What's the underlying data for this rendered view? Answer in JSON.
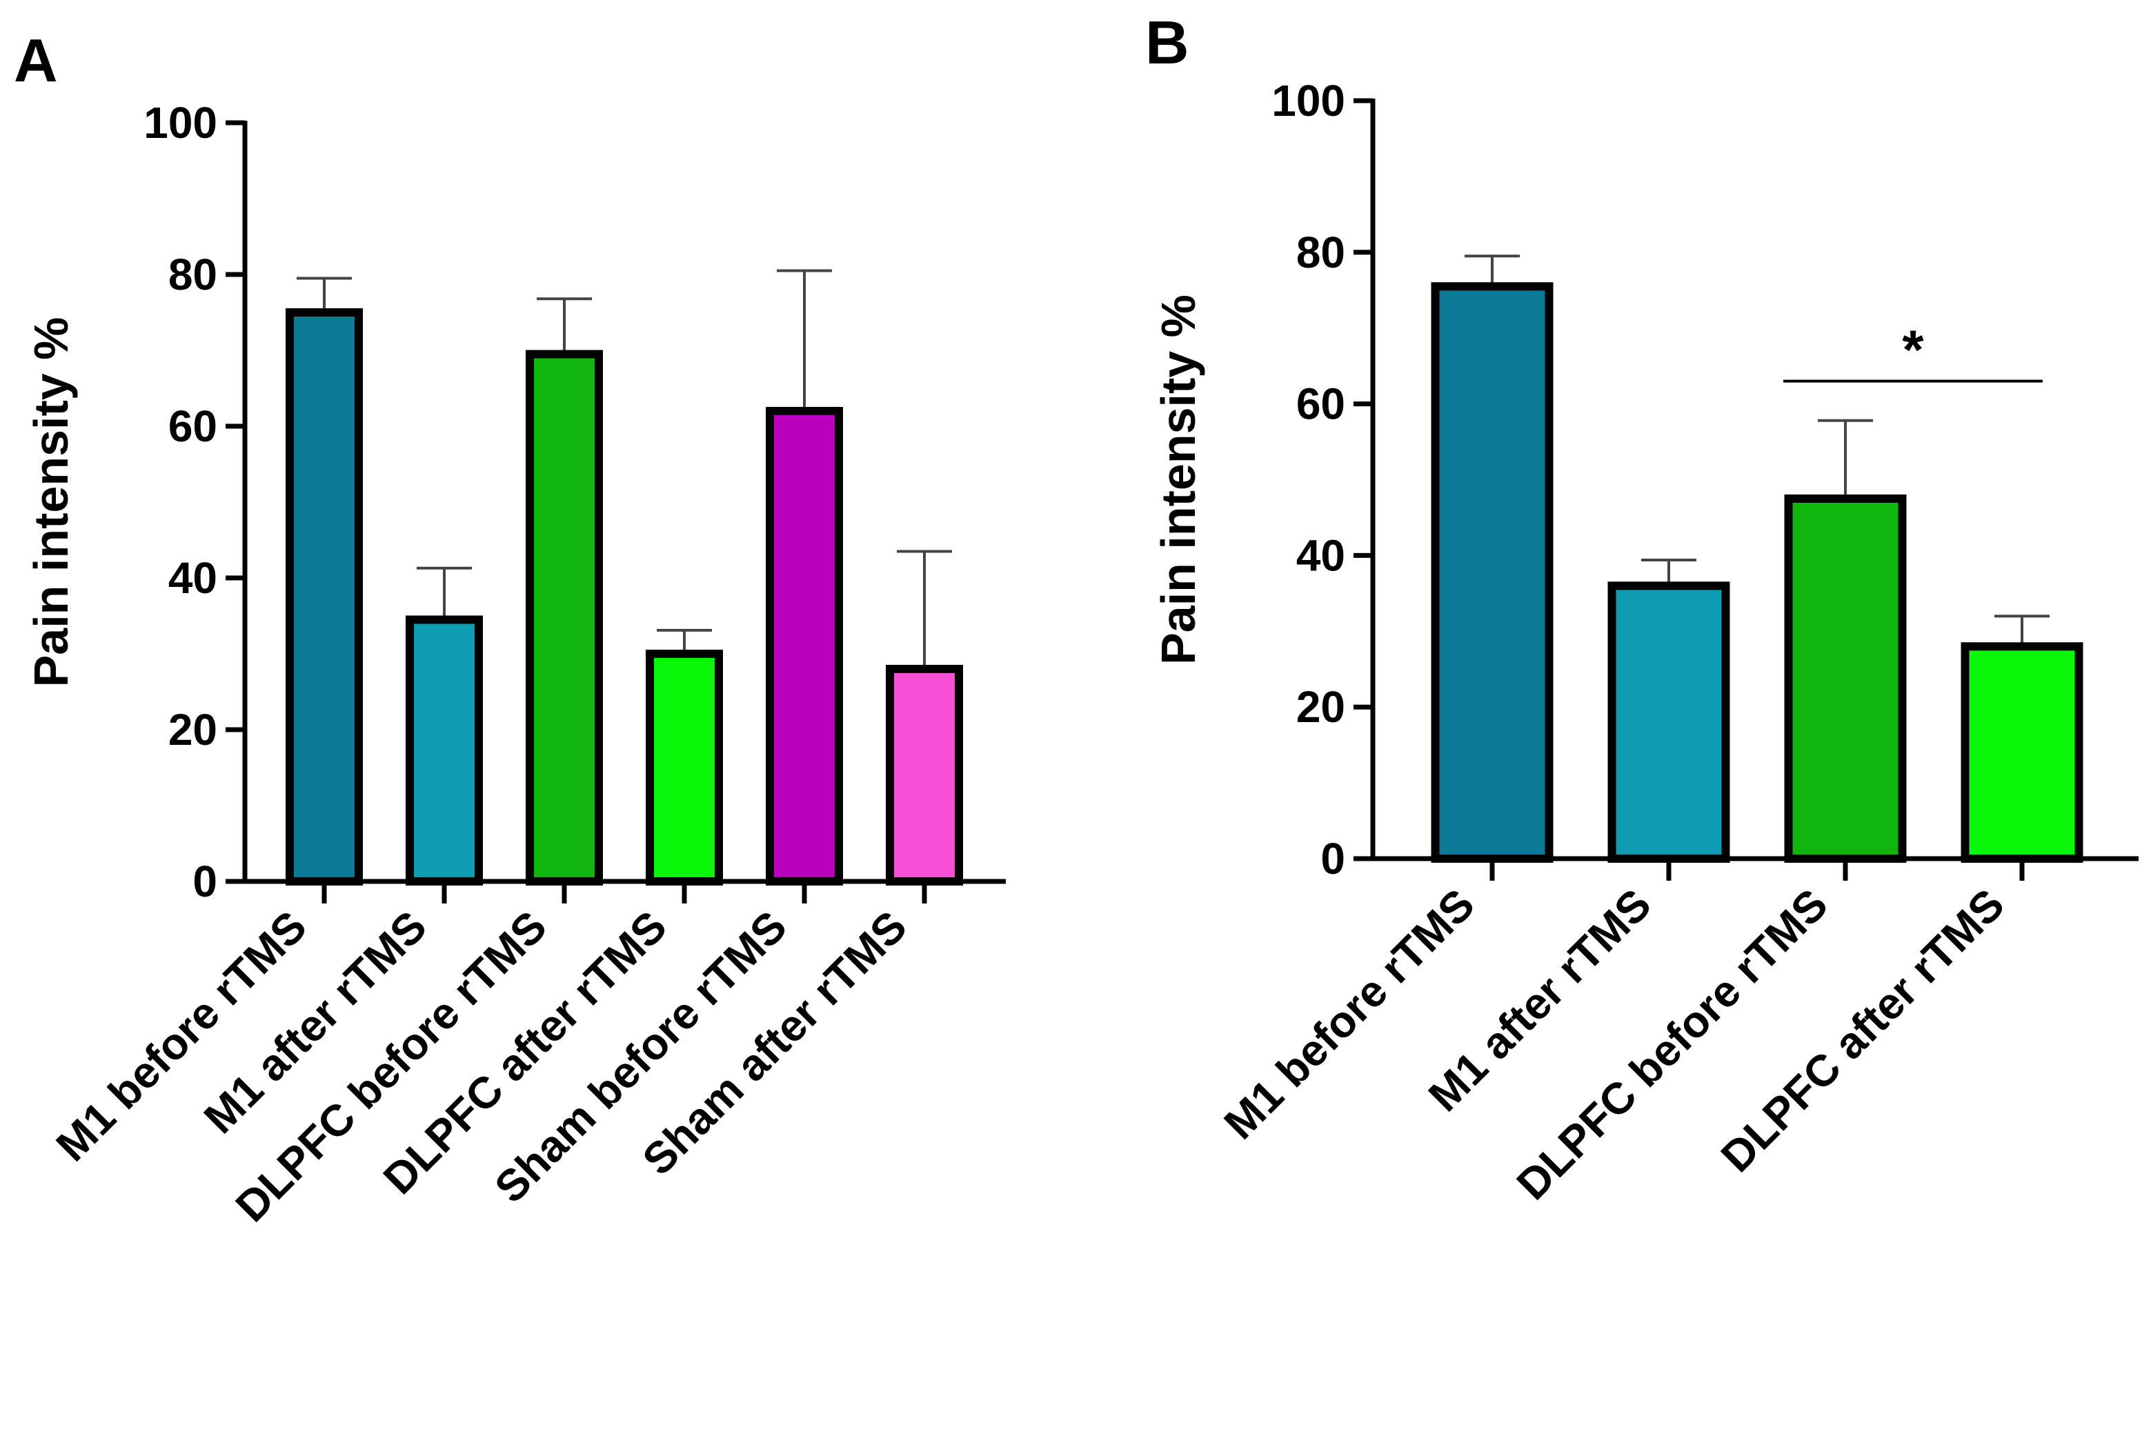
{
  "chart_data": [
    {
      "panel": "A",
      "type": "bar",
      "ylabel": "Pain intensity %",
      "xlabel": "",
      "ylim": [
        0,
        100
      ],
      "yticks": [
        0,
        20,
        40,
        60,
        80,
        100
      ],
      "categories": [
        "M1 before rTMS",
        "M1 after rTMS",
        "DLPFC before rTMS",
        "DLPFC after rTMS",
        "Sham before rTMS",
        "Sham after rTMS"
      ],
      "values": [
        75,
        34.5,
        69.5,
        30,
        62,
        28
      ],
      "errors": [
        4.5,
        6.8,
        7.3,
        3.1,
        18.5,
        15.5
      ],
      "colors": [
        "#0a7a96",
        "#0e9cb2",
        "#10b60e",
        "#0af70a",
        "#b900bd",
        "#f54fd6"
      ],
      "legend": "none",
      "grid": false
    },
    {
      "panel": "B",
      "type": "bar",
      "ylabel": "Pain intensity %",
      "xlabel": "",
      "ylim": [
        0,
        100
      ],
      "yticks": [
        0,
        20,
        40,
        60,
        80,
        100
      ],
      "categories": [
        "M1 before rTMS",
        "M1 after rTMS",
        "DLPFC before rTMS",
        "DLPFC after rTMS"
      ],
      "values": [
        75.5,
        36,
        47.5,
        28
      ],
      "errors": [
        4,
        3.4,
        10.3,
        4
      ],
      "colors": [
        "#0a7a96",
        "#0e9cb2",
        "#10b60e",
        "#0af70a"
      ],
      "legend": "none",
      "grid": false,
      "significance": [
        {
          "from": "DLPFC before rTMS",
          "to": "DLPFC after rTMS",
          "label": "*"
        }
      ]
    }
  ]
}
